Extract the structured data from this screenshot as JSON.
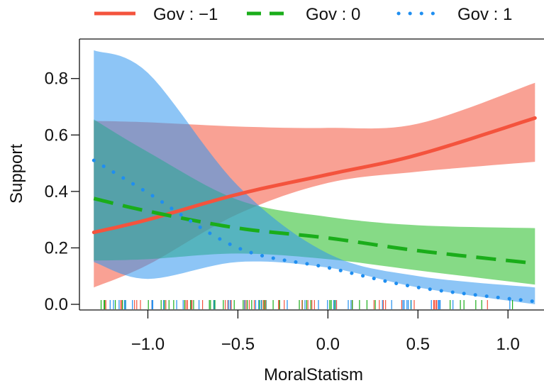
{
  "chart_data": {
    "type": "line",
    "xlabel": "MoralStatism",
    "ylabel": "Support",
    "xlim": [
      -1.38,
      1.2
    ],
    "ylim": [
      -0.02,
      0.94
    ],
    "xticks": [
      -1.0,
      -0.5,
      0.0,
      0.5,
      1.0
    ],
    "xtick_labels": [
      "−1.0",
      "−0.5",
      "0.0",
      "0.5",
      "1.0"
    ],
    "yticks": [
      0.0,
      0.2,
      0.4,
      0.6,
      0.8
    ],
    "ytick_labels": [
      "0.0",
      "0.2",
      "0.4",
      "0.6",
      "0.8"
    ],
    "legend_position": "top",
    "series": [
      {
        "name": "Gov : −1",
        "style": "solid",
        "color": "#f4533d",
        "band_color": "#f4533d",
        "x": [
          -1.3,
          -1.0,
          -0.5,
          0.0,
          0.5,
          1.15
        ],
        "y": [
          0.255,
          0.3,
          0.39,
          0.46,
          0.53,
          0.66
        ],
        "lower": [
          0.06,
          0.14,
          0.32,
          0.43,
          0.47,
          0.505
        ],
        "upper": [
          0.65,
          0.645,
          0.63,
          0.625,
          0.64,
          0.785
        ]
      },
      {
        "name": "Gov : 0",
        "style": "dashed",
        "color": "#1aad1a",
        "band_color": "#23bb23",
        "x": [
          -1.3,
          -1.0,
          -0.5,
          0.0,
          0.5,
          1.15
        ],
        "y": [
          0.375,
          0.33,
          0.27,
          0.235,
          0.19,
          0.145
        ],
        "lower": [
          0.155,
          0.16,
          0.18,
          0.16,
          0.12,
          0.07
        ],
        "upper": [
          0.655,
          0.54,
          0.37,
          0.31,
          0.28,
          0.27
        ]
      },
      {
        "name": "Gov : 1",
        "style": "dotted",
        "color": "#1f8ef0",
        "band_color": "#2f96ee",
        "x": [
          -1.3,
          -1.0,
          -0.5,
          0.0,
          0.5,
          1.15
        ],
        "y": [
          0.51,
          0.395,
          0.2,
          0.13,
          0.06,
          0.01
        ],
        "lower": [
          0.15,
          0.09,
          0.15,
          0.13,
          0.06,
          0.0
        ],
        "upper": [
          0.9,
          0.82,
          0.42,
          0.18,
          0.1,
          0.06
        ]
      }
    ],
    "rug": {
      "colors": [
        "#f4533d",
        "#1aad1a",
        "#1f8ef0"
      ],
      "x_min": -1.3,
      "x_max": 1.15,
      "count": 140
    }
  }
}
